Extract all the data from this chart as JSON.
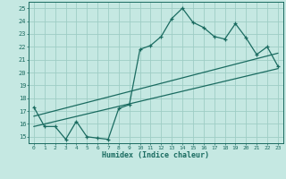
{
  "xlabel": "Humidex (Indice chaleur)",
  "xlim": [
    -0.5,
    23.5
  ],
  "ylim": [
    14.5,
    25.5
  ],
  "xticks": [
    0,
    1,
    2,
    3,
    4,
    5,
    6,
    7,
    8,
    9,
    10,
    11,
    12,
    13,
    14,
    15,
    16,
    17,
    18,
    19,
    20,
    21,
    22,
    23
  ],
  "yticks": [
    15,
    16,
    17,
    18,
    19,
    20,
    21,
    22,
    23,
    24,
    25
  ],
  "bg_color": "#c5e8e2",
  "grid_color": "#9ecdc5",
  "line_color": "#1a6b60",
  "main_series_x": [
    0,
    1,
    2,
    3,
    4,
    5,
    6,
    7,
    8,
    9,
    10,
    11,
    12,
    13,
    14,
    15,
    16,
    17,
    18,
    19,
    20,
    21,
    22,
    23
  ],
  "main_series_y": [
    17.3,
    15.8,
    15.8,
    14.8,
    16.2,
    15.0,
    14.9,
    14.8,
    17.2,
    17.5,
    21.8,
    22.1,
    22.8,
    24.2,
    25.0,
    23.9,
    23.5,
    22.8,
    22.6,
    23.8,
    22.7,
    21.4,
    22.0,
    20.5
  ],
  "trend1_x": [
    0,
    23
  ],
  "trend1_y": [
    15.8,
    20.3
  ],
  "trend2_x": [
    0,
    23
  ],
  "trend2_y": [
    16.6,
    21.5
  ]
}
